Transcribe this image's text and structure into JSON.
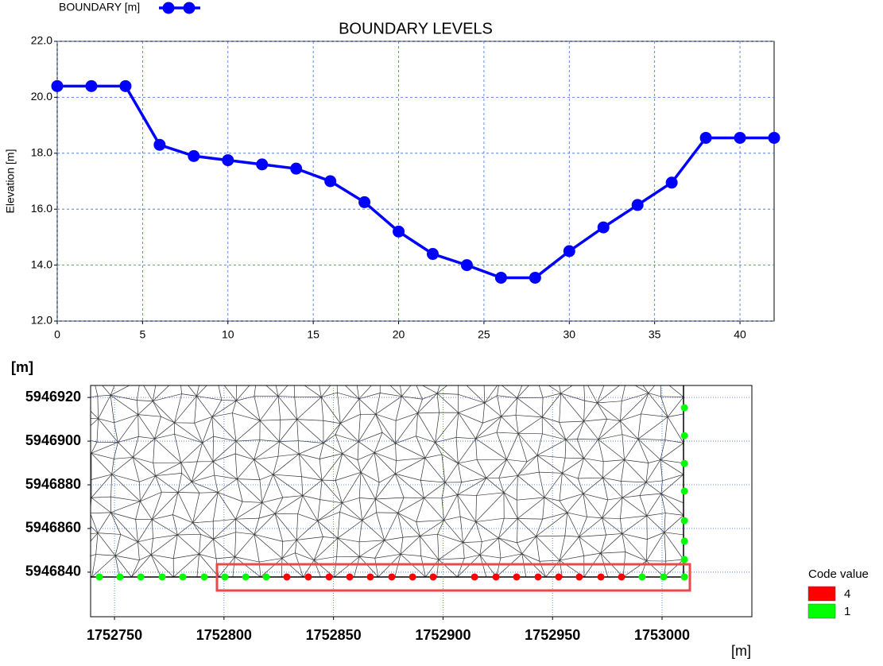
{
  "chart_data": [
    {
      "type": "line",
      "title": "BOUNDARY LEVELS",
      "y_label": "Elevation [m]",
      "x": [
        0,
        2,
        4,
        6,
        8,
        10,
        12,
        14,
        16,
        18,
        20,
        22,
        24,
        26,
        28,
        30,
        32,
        34,
        36,
        38,
        40,
        42
      ],
      "series": [
        {
          "name": "BOUNDARY [m]",
          "color": "#0000ff",
          "values": [
            20.4,
            20.4,
            20.4,
            18.3,
            17.9,
            17.75,
            17.6,
            17.45,
            17.0,
            16.25,
            15.2,
            14.4,
            14.0,
            13.55,
            13.55,
            14.5,
            15.35,
            16.15,
            16.95,
            18.55,
            18.55,
            18.55
          ]
        }
      ],
      "xlim": [
        0,
        42
      ],
      "xticks": [
        0,
        5,
        10,
        15,
        20,
        25,
        30,
        35,
        40
      ],
      "ylim": [
        12,
        22
      ],
      "yticks": [
        {
          "value": 12,
          "label": "12.0"
        },
        {
          "value": 14,
          "label": "14.0"
        },
        {
          "value": 16,
          "label": "16.0"
        },
        {
          "value": 18,
          "label": "18.0"
        },
        {
          "value": 20,
          "label": "20.0"
        },
        {
          "value": 22,
          "label": "22.0"
        }
      ],
      "grid": true
    },
    {
      "type": "scatter",
      "x_label": "[m]",
      "y_label": "[m]",
      "legend_title": "Code value",
      "series": [
        {
          "name": "4",
          "color": "#ff0000",
          "x": [
            1752828.7,
            1752838.5,
            1752848.0,
            1752857.4,
            1752866.8,
            1752876.6,
            1752886.1,
            1752895.5,
            1752914.4,
            1752924.2,
            1752933.6,
            1752943.4,
            1752952.8,
            1752962.2,
            1752972.1,
            1752981.5
          ],
          "y": [
            5946837.8,
            5946837.8,
            5946837.8,
            5946837.8,
            5946837.8,
            5946837.8,
            5946837.8,
            5946837.8,
            5946837.8,
            5946837.8,
            5946837.8,
            5946837.8,
            5946837.8,
            5946837.8,
            5946837.8,
            5946837.8
          ]
        },
        {
          "name": "1",
          "color": "#00ff00",
          "x": [
            1752743.1,
            1752752.5,
            1752762.0,
            1752771.8,
            1752781.2,
            1752791.0,
            1752800.4,
            1752809.9,
            1752819.3,
            1752990.9,
            1753000.7,
            1753010.2,
            1753010.2,
            1753010.2,
            1753010.2,
            1753010.2,
            1753010.2,
            1753010.2,
            1753010.2
          ],
          "y": [
            5946837.8,
            5946837.8,
            5946837.8,
            5946837.8,
            5946837.8,
            5946837.8,
            5946837.8,
            5946837.8,
            5946837.8,
            5946837.8,
            5946837.8,
            5946837.8,
            5946845.8,
            5946854.2,
            5946863.6,
            5946877.1,
            5946889.8,
            5946902.5,
            5946915.3
          ]
        }
      ],
      "xlim": [
        1752739.1,
        1753041
      ],
      "xticks": [
        1752750,
        1752800,
        1752850,
        1752900,
        1752950,
        1753000
      ],
      "ylim": [
        5946819.6,
        5946925.5
      ],
      "yticks": [
        5946840,
        5946860,
        5946880,
        5946900,
        5946920
      ],
      "grid": true
    }
  ]
}
